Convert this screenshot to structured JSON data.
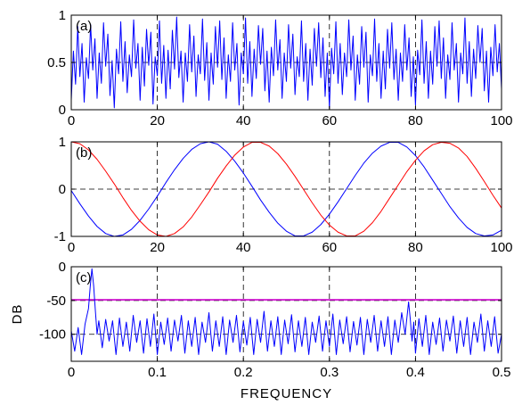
{
  "chart_data": [
    {
      "type": "line",
      "panel_label": "(a)",
      "xlim": [
        0,
        100
      ],
      "ylim": [
        0,
        1
      ],
      "xticks": [
        0,
        20,
        40,
        60,
        80,
        100
      ],
      "yticks": [
        0,
        0.5,
        1
      ],
      "grid": true,
      "xlabel": "",
      "ylabel": "",
      "series": [
        {
          "color": "#0000ff",
          "x": [
            0,
            0.5,
            1,
            1.5,
            2,
            2.5,
            3,
            3.5,
            4,
            4.5,
            5,
            5.5,
            6,
            6.5,
            7,
            7.5,
            8,
            8.5,
            9,
            9.5,
            10,
            10.5,
            11,
            11.5,
            12,
            12.5,
            13,
            13.5,
            14,
            14.5,
            15,
            15.5,
            16,
            16.5,
            17,
            17.5,
            18,
            18.5,
            19,
            19.5,
            20,
            20.5,
            21,
            21.5,
            22,
            22.5,
            23,
            23.5,
            24,
            24.5,
            25,
            25.5,
            26,
            26.5,
            27,
            27.5,
            28,
            28.5,
            29,
            29.5,
            30,
            30.5,
            31,
            31.5,
            32,
            32.5,
            33,
            33.5,
            34,
            34.5,
            35,
            35.5,
            36,
            36.5,
            37,
            37.5,
            38,
            38.5,
            39,
            39.5,
            40,
            40.5,
            41,
            41.5,
            42,
            42.5,
            43,
            43.5,
            44,
            44.5,
            45,
            45.5,
            46,
            46.5,
            47,
            47.5,
            48,
            48.5,
            49,
            49.5,
            50,
            50.5,
            51,
            51.5,
            52,
            52.5,
            53,
            53.5,
            54,
            54.5,
            55,
            55.5,
            56,
            56.5,
            57,
            57.5,
            58,
            58.5,
            59,
            59.5,
            60,
            60.5,
            61,
            61.5,
            62,
            62.5,
            63,
            63.5,
            64,
            64.5,
            65,
            65.5,
            66,
            66.5,
            67,
            67.5,
            68,
            68.5,
            69,
            69.5,
            70,
            70.5,
            71,
            71.5,
            72,
            72.5,
            73,
            73.5,
            74,
            74.5,
            75,
            75.5,
            76,
            76.5,
            77,
            77.5,
            78,
            78.5,
            79,
            79.5,
            80,
            80.5,
            81,
            81.5,
            82,
            82.5,
            83,
            83.5,
            84,
            84.5,
            85,
            85.5,
            86,
            86.5,
            87,
            87.5,
            88,
            88.5,
            89,
            89.5,
            90,
            90.5,
            91,
            91.5,
            92,
            92.5,
            93,
            93.5,
            94,
            94.5,
            95,
            95.5,
            96,
            96.5,
            97,
            97.5,
            98,
            98.5,
            99,
            99.5,
            100
          ],
          "y": [
            0.1,
            0.62,
            0.27,
            0.88,
            0.35,
            0.7,
            0.08,
            0.55,
            0.33,
            0.9,
            0.42,
            0.75,
            0.12,
            0.6,
            0.28,
            0.92,
            0.46,
            0.8,
            0.15,
            0.52,
            0.02,
            0.64,
            0.38,
            0.93,
            0.3,
            0.72,
            0.18,
            0.58,
            0.35,
            0.95,
            0.44,
            0.7,
            0.1,
            0.66,
            0.25,
            0.85,
            0.47,
            0.82,
            0.06,
            0.56,
            0.36,
            0.94,
            0.28,
            0.68,
            0.12,
            0.63,
            0.22,
            0.84,
            0.43,
            0.98,
            0.34,
            0.62,
            0.08,
            0.6,
            0.3,
            0.9,
            0.4,
            0.78,
            0.14,
            0.58,
            0.38,
            0.96,
            0.31,
            0.71,
            0.1,
            0.6,
            0.27,
            0.88,
            0.45,
            0.94,
            0.32,
            0.76,
            0.12,
            0.58,
            0.3,
            0.92,
            0.42,
            0.7,
            0.05,
            0.6,
            0.38,
            0.97,
            0.28,
            0.72,
            0.14,
            0.64,
            0.33,
            0.89,
            0.48,
            0.86,
            0.2,
            0.62,
            0.08,
            0.66,
            0.36,
            0.95,
            0.42,
            0.74,
            0.12,
            0.6,
            0.3,
            0.9,
            0.44,
            0.8,
            0.16,
            0.56,
            0.35,
            0.94,
            0.3,
            0.7,
            0.1,
            0.64,
            0.26,
            0.86,
            0.46,
            0.92,
            0.34,
            0.76,
            0.14,
            0.6,
            0.02,
            0.65,
            0.38,
            0.93,
            0.28,
            0.7,
            0.16,
            0.6,
            0.35,
            0.95,
            0.42,
            0.78,
            0.1,
            0.58,
            0.27,
            0.88,
            0.45,
            0.82,
            0.08,
            0.58,
            0.36,
            0.96,
            0.3,
            0.7,
            0.12,
            0.62,
            0.22,
            0.85,
            0.44,
            0.92,
            0.32,
            0.64,
            0.1,
            0.6,
            0.3,
            0.9,
            0.42,
            0.76,
            0.14,
            0.56,
            0.05,
            0.63,
            0.37,
            0.95,
            0.28,
            0.72,
            0.12,
            0.62,
            0.27,
            0.88,
            0.46,
            0.94,
            0.33,
            0.76,
            0.12,
            0.58,
            0.32,
            0.92,
            0.42,
            0.7,
            0.08,
            0.6,
            0.38,
            0.97,
            0.28,
            0.72,
            0.14,
            0.64,
            0.33,
            0.89,
            0.5,
            0.86,
            0.2,
            0.62,
            0.08,
            0.66,
            0.36,
            0.9,
            0.4,
            0.7,
            0.22
          ]
        }
      ]
    },
    {
      "type": "line",
      "panel_label": "(b)",
      "xlim": [
        0,
        100
      ],
      "ylim": [
        -1,
        1
      ],
      "xticks": [
        0,
        20,
        40,
        60,
        80,
        100
      ],
      "yticks": [
        -1,
        0,
        1
      ],
      "grid": true,
      "xlabel": "",
      "ylabel": "",
      "series": [
        {
          "color": "#0000ff",
          "x": [
            0,
            2,
            4,
            6,
            8,
            10,
            12,
            14,
            16,
            18,
            20,
            22,
            24,
            26,
            28,
            30,
            32,
            34,
            36,
            38,
            40,
            42,
            44,
            46,
            48,
            50,
            52,
            54,
            56,
            58,
            60,
            62,
            64,
            66,
            68,
            70,
            72,
            74,
            76,
            78,
            80,
            82,
            84,
            86,
            88,
            90,
            92,
            94,
            96,
            98,
            100
          ],
          "y": [
            -0.03,
            -0.31,
            -0.57,
            -0.79,
            -0.94,
            -1.0,
            -0.97,
            -0.85,
            -0.66,
            -0.42,
            -0.15,
            0.14,
            0.41,
            0.65,
            0.84,
            0.96,
            1.0,
            0.95,
            0.8,
            0.59,
            0.34,
            0.06,
            -0.23,
            -0.49,
            -0.72,
            -0.89,
            -0.99,
            -0.99,
            -0.91,
            -0.75,
            -0.53,
            -0.27,
            0.01,
            0.29,
            0.55,
            0.76,
            0.91,
            0.99,
            0.99,
            0.89,
            0.71,
            0.47,
            0.19,
            -0.09,
            -0.37,
            -0.61,
            -0.81,
            -0.94,
            -0.99,
            -0.97,
            -0.87
          ]
        },
        {
          "color": "#ff0000",
          "x": [
            0,
            2,
            4,
            6,
            8,
            10,
            12,
            14,
            16,
            18,
            20,
            22,
            24,
            26,
            28,
            30,
            32,
            34,
            36,
            38,
            40,
            42,
            44,
            46,
            48,
            50,
            52,
            54,
            56,
            58,
            60,
            62,
            64,
            66,
            68,
            70,
            72,
            74,
            76,
            78,
            80,
            82,
            84,
            86,
            88,
            90,
            92,
            94,
            96,
            98,
            100
          ],
          "y": [
            1.0,
            0.96,
            0.83,
            0.63,
            0.38,
            0.11,
            -0.18,
            -0.45,
            -0.68,
            -0.86,
            -0.97,
            -1.0,
            -0.94,
            -0.8,
            -0.59,
            -0.33,
            -0.06,
            0.23,
            0.49,
            0.72,
            0.89,
            0.99,
            0.99,
            0.91,
            0.75,
            0.53,
            0.27,
            -0.01,
            -0.29,
            -0.55,
            -0.76,
            -0.91,
            -0.99,
            -0.99,
            -0.89,
            -0.71,
            -0.47,
            -0.19,
            0.09,
            0.37,
            0.61,
            0.81,
            0.94,
            0.99,
            0.97,
            0.87,
            0.69,
            0.44,
            0.16,
            -0.13,
            -0.4
          ]
        }
      ]
    },
    {
      "type": "line",
      "panel_label": "(c)",
      "xlim": [
        0,
        0.5
      ],
      "ylim": [
        -140,
        0
      ],
      "xticks": [
        0,
        0.1,
        0.2,
        0.3,
        0.4,
        0.5
      ],
      "yticks": [
        -100,
        -50,
        0
      ],
      "grid": true,
      "xlabel": "FREQUENCY",
      "ylabel": "DB",
      "threshold": {
        "color": "#cc00cc",
        "value": -49
      },
      "series": [
        {
          "color": "#0000ff",
          "x": [
            0,
            0.004,
            0.008,
            0.012,
            0.016,
            0.02,
            0.022,
            0.024,
            0.026,
            0.028,
            0.03,
            0.032,
            0.036,
            0.04,
            0.044,
            0.048,
            0.052,
            0.056,
            0.06,
            0.064,
            0.068,
            0.072,
            0.076,
            0.08,
            0.084,
            0.088,
            0.092,
            0.096,
            0.1,
            0.104,
            0.108,
            0.112,
            0.116,
            0.12,
            0.124,
            0.128,
            0.132,
            0.136,
            0.14,
            0.144,
            0.148,
            0.152,
            0.156,
            0.16,
            0.164,
            0.168,
            0.172,
            0.176,
            0.18,
            0.184,
            0.188,
            0.192,
            0.196,
            0.2,
            0.204,
            0.208,
            0.212,
            0.216,
            0.22,
            0.224,
            0.228,
            0.232,
            0.236,
            0.24,
            0.244,
            0.248,
            0.252,
            0.256,
            0.26,
            0.264,
            0.268,
            0.272,
            0.276,
            0.28,
            0.284,
            0.288,
            0.292,
            0.296,
            0.3,
            0.304,
            0.308,
            0.312,
            0.316,
            0.32,
            0.324,
            0.328,
            0.332,
            0.336,
            0.34,
            0.344,
            0.348,
            0.352,
            0.356,
            0.36,
            0.364,
            0.368,
            0.372,
            0.376,
            0.38,
            0.384,
            0.388,
            0.392,
            0.394,
            0.396,
            0.398,
            0.4,
            0.404,
            0.408,
            0.412,
            0.416,
            0.42,
            0.424,
            0.428,
            0.432,
            0.436,
            0.44,
            0.444,
            0.448,
            0.452,
            0.456,
            0.46,
            0.464,
            0.468,
            0.472,
            0.476,
            0.48,
            0.484,
            0.488,
            0.492,
            0.496,
            0.5
          ],
          "y": [
            -95,
            -125,
            -90,
            -130,
            -85,
            -62,
            -30,
            -3,
            -28,
            -65,
            -100,
            -80,
            -120,
            -78,
            -110,
            -80,
            -130,
            -76,
            -118,
            -82,
            -125,
            -72,
            -112,
            -80,
            -128,
            -77,
            -118,
            -70,
            -130,
            -82,
            -115,
            -76,
            -125,
            -79,
            -110,
            -72,
            -128,
            -80,
            -118,
            -75,
            -130,
            -82,
            -112,
            -68,
            -125,
            -80,
            -118,
            -74,
            -130,
            -79,
            -112,
            -72,
            -126,
            -81,
            -116,
            -75,
            -130,
            -78,
            -112,
            -66,
            -125,
            -80,
            -118,
            -74,
            -130,
            -79,
            -114,
            -71,
            -126,
            -80,
            -118,
            -75,
            -130,
            -82,
            -112,
            -73,
            -125,
            -80,
            -118,
            -70,
            -130,
            -79,
            -114,
            -74,
            -126,
            -81,
            -116,
            -75,
            -130,
            -78,
            -112,
            -72,
            -125,
            -80,
            -118,
            -74,
            -130,
            -79,
            -112,
            -68,
            -100,
            -52,
            -78,
            -110,
            -82,
            -128,
            -77,
            -118,
            -72,
            -130,
            -82,
            -115,
            -76,
            -125,
            -79,
            -110,
            -73,
            -128,
            -80,
            -118,
            -75,
            -130,
            -82,
            -112,
            -70,
            -125,
            -80,
            -118,
            -74,
            -128,
            -100
          ]
        }
      ]
    }
  ]
}
